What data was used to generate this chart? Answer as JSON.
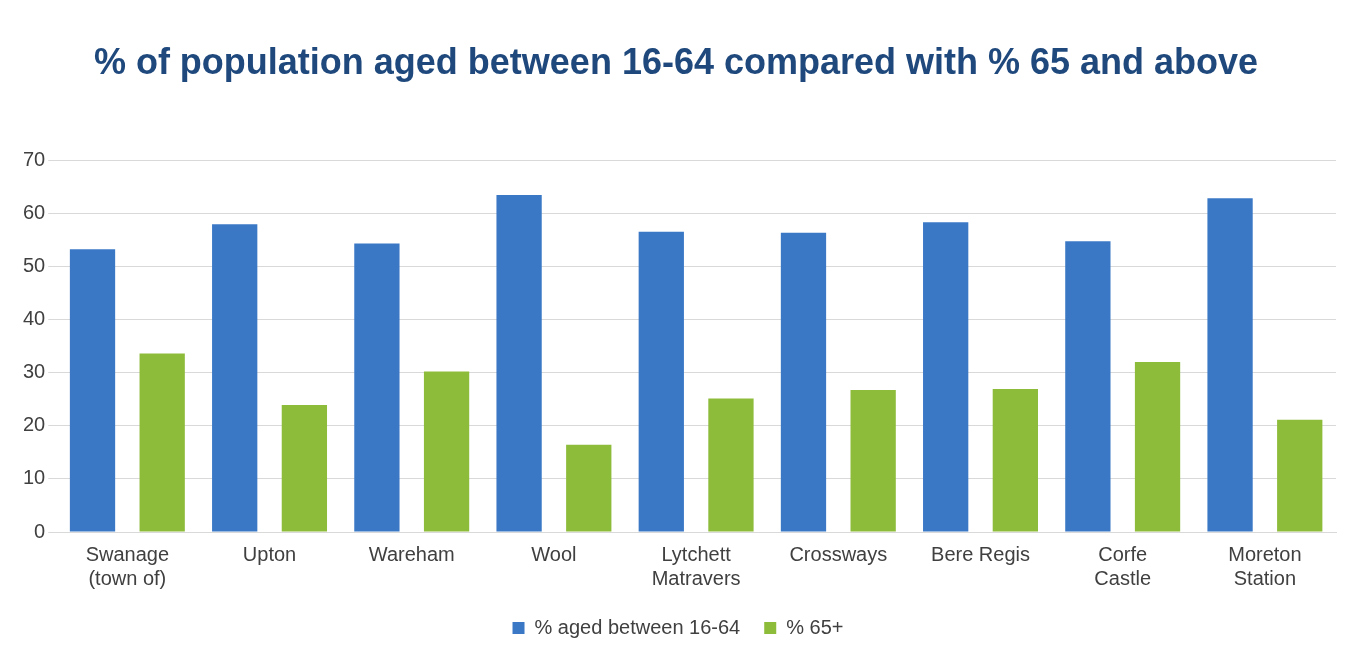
{
  "chart_data": {
    "type": "bar",
    "title": "% of population aged between 16-64 compared with % 65 and above",
    "categories": [
      "Swanage (town of)",
      "Upton",
      "Wareham",
      "Wool",
      "Lytchett Matravers",
      "Crossways",
      "Bere Regis",
      "Corfe Castle",
      "Moreton Station"
    ],
    "series": [
      {
        "name": "% aged between 16-64",
        "color": "#3a78c6",
        "values": [
          53.2,
          57.9,
          54.3,
          63.4,
          56.5,
          56.3,
          58.3,
          54.7,
          62.8
        ]
      },
      {
        "name": "% 65+",
        "color": "#8dbb3a",
        "values": [
          33.6,
          23.9,
          30.2,
          16.4,
          25.1,
          26.7,
          26.9,
          32.0,
          21.1
        ]
      }
    ],
    "ylim": [
      0,
      70
    ],
    "yticks": [
      0,
      10,
      20,
      30,
      40,
      50,
      60,
      70
    ],
    "grid": "y",
    "legend": "bottom"
  }
}
